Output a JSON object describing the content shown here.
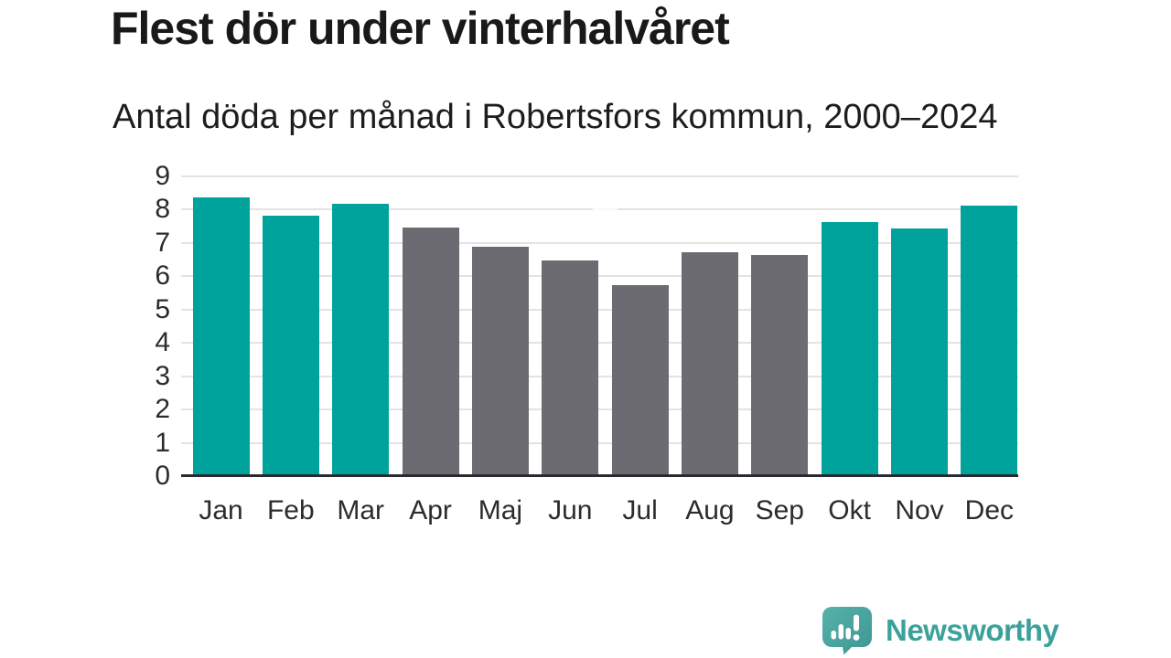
{
  "header": {
    "title": "Flest dör under vinterhalvåret",
    "subtitle": "Antal döda per månad i Robertsfors kommun, 2000–2024"
  },
  "chart_data": {
    "type": "bar",
    "title": "Flest dör under vinterhalvåret",
    "subtitle": "Antal döda per månad i Robertsfors kommun, 2000–2024",
    "categories": [
      "Jan",
      "Feb",
      "Mar",
      "Apr",
      "Maj",
      "Jun",
      "Jul",
      "Aug",
      "Sep",
      "Okt",
      "Nov",
      "Dec"
    ],
    "values": [
      8.35,
      7.8,
      8.15,
      7.45,
      6.85,
      6.45,
      5.7,
      6.7,
      6.6,
      7.6,
      7.4,
      8.1
    ],
    "bar_colors": [
      "teal",
      "teal",
      "teal",
      "gray",
      "gray",
      "gray",
      "gray",
      "gray",
      "gray",
      "teal",
      "teal",
      "teal"
    ],
    "colors": {
      "teal": "#00a39b",
      "gray": "#6d6b72"
    },
    "xlabel": "",
    "ylabel": "",
    "ylim": [
      0,
      9
    ],
    "yticks": [
      0,
      1,
      2,
      3,
      4,
      5,
      6,
      7,
      8,
      9
    ],
    "grid": true,
    "legend": false,
    "gridline_color": "#e4e3e3",
    "axis_color": "#2b292e"
  },
  "footer": {
    "brand": "Newsworthy",
    "logo_icon": "newsworthy-speech-bubble-chart-icon",
    "brand_color": "#3ba19b",
    "icon_color_top": "#57b1aa",
    "icon_color_bottom": "#3d9693"
  }
}
